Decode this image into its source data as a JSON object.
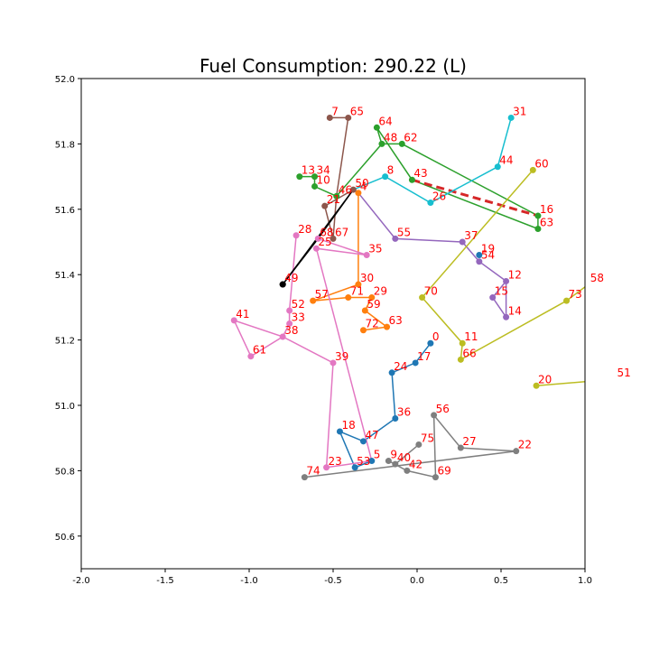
{
  "chart_data": {
    "type": "scatter",
    "title": "Fuel Consumption: 290.22 (L)",
    "xlabel": "",
    "ylabel": "",
    "xlim": [
      -2.0,
      1.0
    ],
    "ylim": [
      50.5,
      52.0
    ],
    "xticks": [
      "-2.0",
      "-1.5",
      "-1.0",
      "-0.5",
      "0.0",
      "0.5",
      "1.0"
    ],
    "yticks": [
      "50.6",
      "50.8",
      "51.0",
      "51.2",
      "51.4",
      "51.6",
      "51.8",
      "52.0"
    ],
    "grid": false,
    "depot": {
      "x": -0.8,
      "y": 51.37
    },
    "nodes": [
      {
        "id": "0",
        "x": 0.08,
        "y": 51.19
      },
      {
        "id": "4",
        "x": -0.35,
        "y": 51.65
      },
      {
        "id": "5",
        "x": -0.27,
        "y": 50.83
      },
      {
        "id": "7",
        "x": -0.52,
        "y": 51.88
      },
      {
        "id": "8",
        "x": -0.19,
        "y": 51.7
      },
      {
        "id": "9",
        "x": -0.17,
        "y": 50.83
      },
      {
        "id": "10",
        "x": -0.61,
        "y": 51.67
      },
      {
        "id": "11",
        "x": 0.27,
        "y": 51.19
      },
      {
        "id": "12",
        "x": 0.53,
        "y": 51.38
      },
      {
        "id": "13",
        "x": -0.7,
        "y": 51.7
      },
      {
        "id": "14",
        "x": 0.53,
        "y": 51.27
      },
      {
        "id": "15",
        "x": 0.45,
        "y": 51.33
      },
      {
        "id": "16",
        "x": 0.72,
        "y": 51.58
      },
      {
        "id": "17",
        "x": -0.01,
        "y": 51.13
      },
      {
        "id": "18",
        "x": -0.46,
        "y": 50.92
      },
      {
        "id": "19",
        "x": 0.37,
        "y": 51.46
      },
      {
        "id": "20",
        "x": 0.71,
        "y": 51.06
      },
      {
        "id": "21",
        "x": -0.55,
        "y": 51.61
      },
      {
        "id": "22",
        "x": 0.59,
        "y": 50.86
      },
      {
        "id": "23",
        "x": -0.54,
        "y": 50.81
      },
      {
        "id": "24",
        "x": -0.15,
        "y": 51.1
      },
      {
        "id": "25",
        "x": -0.6,
        "y": 51.48
      },
      {
        "id": "26",
        "x": 0.08,
        "y": 51.62
      },
      {
        "id": "27",
        "x": 0.26,
        "y": 50.87
      },
      {
        "id": "28",
        "x": -0.72,
        "y": 51.52
      },
      {
        "id": "29",
        "x": -0.27,
        "y": 51.33
      },
      {
        "id": "30",
        "x": -0.35,
        "y": 51.37
      },
      {
        "id": "31",
        "x": 0.56,
        "y": 51.88
      },
      {
        "id": "33",
        "x": -0.76,
        "y": 51.25
      },
      {
        "id": "34",
        "x": -0.61,
        "y": 51.7
      },
      {
        "id": "35",
        "x": -0.3,
        "y": 51.46
      },
      {
        "id": "36",
        "x": -0.13,
        "y": 50.96
      },
      {
        "id": "37",
        "x": 0.27,
        "y": 51.5
      },
      {
        "id": "38",
        "x": -0.8,
        "y": 51.21
      },
      {
        "id": "39",
        "x": -0.5,
        "y": 51.13
      },
      {
        "id": "40",
        "x": -0.13,
        "y": 50.82
      },
      {
        "id": "41",
        "x": -1.09,
        "y": 51.26
      },
      {
        "id": "42",
        "x": -0.06,
        "y": 50.8
      },
      {
        "id": "43",
        "x": -0.03,
        "y": 51.69
      },
      {
        "id": "44",
        "x": 0.48,
        "y": 51.73
      },
      {
        "id": "46",
        "x": -0.48,
        "y": 51.64
      },
      {
        "id": "47",
        "x": -0.32,
        "y": 50.89
      },
      {
        "id": "48",
        "x": -0.21,
        "y": 51.8
      },
      {
        "id": "49",
        "x": -0.8,
        "y": 51.37
      },
      {
        "id": "50",
        "x": -0.38,
        "y": 51.66
      },
      {
        "id": "51",
        "x": 1.18,
        "y": 51.08
      },
      {
        "id": "52",
        "x": -0.76,
        "y": 51.29
      },
      {
        "id": "53",
        "x": -0.37,
        "y": 50.81
      },
      {
        "id": "54",
        "x": 0.37,
        "y": 51.44
      },
      {
        "id": "55",
        "x": -0.13,
        "y": 51.51
      },
      {
        "id": "56",
        "x": 0.1,
        "y": 50.97
      },
      {
        "id": "57",
        "x": -0.62,
        "y": 51.32
      },
      {
        "id": "58",
        "x": 1.02,
        "y": 51.37
      },
      {
        "id": "59",
        "x": -0.31,
        "y": 51.29
      },
      {
        "id": "60",
        "x": 0.69,
        "y": 51.72
      },
      {
        "id": "61",
        "x": -0.99,
        "y": 51.15
      },
      {
        "id": "62",
        "x": -0.09,
        "y": 51.8
      },
      {
        "id": "63a",
        "x": 0.72,
        "y": 51.54
      },
      {
        "id": "63b",
        "x": -0.18,
        "y": 51.24
      },
      {
        "id": "64",
        "x": -0.24,
        "y": 51.85
      },
      {
        "id": "65",
        "x": -0.41,
        "y": 51.88
      },
      {
        "id": "66",
        "x": 0.26,
        "y": 51.14
      },
      {
        "id": "67",
        "x": -0.5,
        "y": 51.51
      },
      {
        "id": "68",
        "x": -0.59,
        "y": 51.51
      },
      {
        "id": "69",
        "x": 0.11,
        "y": 50.78
      },
      {
        "id": "70",
        "x": 0.03,
        "y": 51.33
      },
      {
        "id": "71",
        "x": -0.41,
        "y": 51.33
      },
      {
        "id": "72",
        "x": -0.32,
        "y": 51.23
      },
      {
        "id": "73",
        "x": 0.89,
        "y": 51.32
      },
      {
        "id": "74",
        "x": -0.67,
        "y": 50.78
      },
      {
        "id": "75",
        "x": 0.01,
        "y": 50.88
      }
    ],
    "node_labels": {
      "0": "0",
      "4": "4",
      "5": "5",
      "7": "7",
      "8": "8",
      "9": "9",
      "10": "10",
      "11": "11",
      "12": "12",
      "13": "13",
      "14": "14",
      "15": "15",
      "16": "16",
      "17": "17",
      "18": "18",
      "19": "19",
      "20": "20",
      "21": "21",
      "22": "22",
      "23": "23",
      "24": "24",
      "25": "25",
      "26": "26",
      "27": "27",
      "28": "28",
      "29": "29",
      "30": "30",
      "31": "31",
      "33": "33",
      "34": "34",
      "35": "35",
      "36": "36",
      "37": "37",
      "38": "38",
      "39": "39",
      "40": "40",
      "41": "41",
      "42": "42",
      "43": "43",
      "44": "44",
      "46": "46",
      "47": "47",
      "48": "48",
      "49": "49",
      "50": "50",
      "51": "51",
      "52": "52",
      "53": "53",
      "54": "54",
      "55": "55",
      "56": "56",
      "57": "57",
      "58": "58",
      "59": "59",
      "60": "60",
      "61": "61",
      "62": "62",
      "63a": "63",
      "63b": "63",
      "64": "64",
      "65": "65",
      "66": "66",
      "67": "67",
      "68": "68",
      "69": "69",
      "70": "70",
      "71": "71",
      "72": "72",
      "73": "73",
      "74": "74",
      "75": "75"
    },
    "series": [
      {
        "color": "#1f77b4",
        "route": [
          "0",
          "17",
          "24",
          "36",
          "47",
          "18",
          "53",
          "5"
        ]
      },
      {
        "color": "#ff7f0e",
        "route": [
          "72",
          "63b",
          "59",
          "29",
          "71",
          "57",
          "30",
          "4"
        ]
      },
      {
        "color": "#2ca02c",
        "route": [
          "13",
          "34",
          "10",
          "46",
          "48",
          "64",
          "43",
          "63a",
          "16",
          "62",
          "48"
        ]
      },
      {
        "color": "#d62728",
        "route": [
          "43",
          "16"
        ],
        "dashed": true
      },
      {
        "color": "#9467bd",
        "route": [
          "4",
          "55",
          "37",
          "54",
          "12",
          "14",
          "15",
          "12"
        ]
      },
      {
        "color": "#8c564b",
        "route": [
          "7",
          "65",
          "46",
          "67",
          "21",
          "50"
        ]
      },
      {
        "color": "#e377c2",
        "route": [
          "28",
          "52",
          "33",
          "38",
          "41",
          "61",
          "38",
          "39",
          "23",
          "5",
          "25",
          "35",
          "68"
        ]
      },
      {
        "color": "#7f7f7f",
        "route": [
          "74",
          "22",
          "27",
          "56",
          "69",
          "42",
          "9",
          "40",
          "75"
        ]
      },
      {
        "color": "#bcbd22",
        "route": [
          "60",
          "70",
          "11",
          "66",
          "73",
          "58",
          "51",
          "20"
        ]
      },
      {
        "color": "#17becf",
        "route": [
          "50",
          "8",
          "26",
          "44",
          "31"
        ]
      },
      {
        "color": "#000000",
        "route": [
          "49",
          "68",
          "50",
          "49"
        ]
      }
    ],
    "colors": {
      "label": "#ff0000",
      "depot": "#000000",
      "axis": "#000000"
    }
  }
}
